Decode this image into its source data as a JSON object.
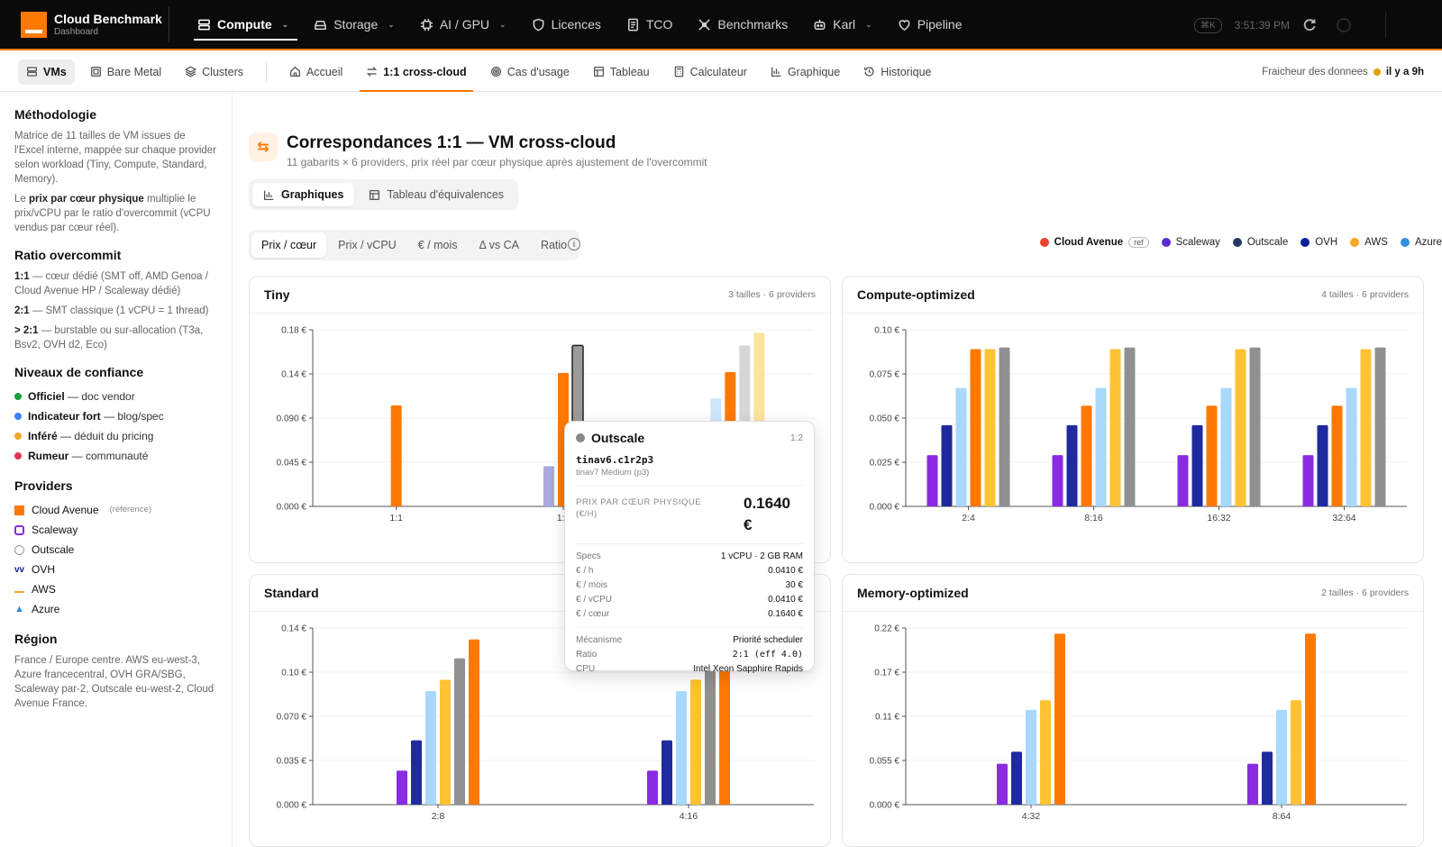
{
  "app": {
    "title": "Cloud Benchmark",
    "subtitle": "Dashboard"
  },
  "nav": [
    {
      "label": "Compute",
      "icon": "server-icon",
      "active": true,
      "dropdown": true
    },
    {
      "label": "Storage",
      "icon": "storage-icon",
      "dropdown": true
    },
    {
      "label": "AI / GPU",
      "icon": "chip-icon",
      "dropdown": true
    },
    {
      "label": "Licences",
      "icon": "shield-icon"
    },
    {
      "label": "TCO",
      "icon": "document-icon"
    },
    {
      "label": "Benchmarks",
      "icon": "tools-icon"
    },
    {
      "label": "Karl",
      "icon": "bot-icon",
      "dropdown": true
    },
    {
      "label": "Pipeline",
      "icon": "pipeline-icon"
    }
  ],
  "topright": {
    "shortcut": "⌘K",
    "clock": "3:51:39 PM"
  },
  "subnav": {
    "group1": [
      {
        "label": "VMs",
        "icon": "server-icon",
        "pill": true
      },
      {
        "label": "Bare Metal",
        "icon": "box-icon"
      },
      {
        "label": "Clusters",
        "icon": "layers-icon"
      }
    ],
    "group2": [
      {
        "label": "Accueil",
        "icon": "home-icon"
      },
      {
        "label": "1:1 cross-cloud",
        "icon": "swap-icon",
        "active": true
      },
      {
        "label": "Cas d'usage",
        "icon": "target-icon"
      },
      {
        "label": "Tableau",
        "icon": "table-icon"
      },
      {
        "label": "Calculateur",
        "icon": "calculator-icon"
      },
      {
        "label": "Graphique",
        "icon": "bar-chart-icon"
      },
      {
        "label": "Historique",
        "icon": "history-icon"
      }
    ],
    "freshness_label": "Fraicheur des donnees",
    "freshness_value": "il y a 9h"
  },
  "sidebar": {
    "methodology": {
      "title": "Méthodologie",
      "p1": "Matrice de 11 tailles de VM issues de l'Excel interne, mappée sur chaque provider selon workload (Tiny, Compute, Standard, Memory).",
      "p2_pre": "Le ",
      "p2_bold": "prix par cœur physique",
      "p2_post": " multiplie le prix/vCPU par le ratio d'overcommit (vCPU vendus par cœur réel)."
    },
    "overcommit": {
      "title": "Ratio overcommit",
      "items": [
        {
          "key": "1:1",
          "text": " — cœur dédié (SMT off, AMD Genoa / Cloud Avenue HP / Scaleway dédié)"
        },
        {
          "key": "2:1",
          "text": " — SMT classique (1 vCPU = 1 thread)"
        },
        {
          "key": "> 2:1",
          "text": " — burstable ou sur-allocation (T3a, Bsv2, OVH d2, Eco)"
        }
      ]
    },
    "confidence": {
      "title": "Niveaux de confiance",
      "items": [
        {
          "key": "Officiel",
          "text": " — doc vendor",
          "color": "#1a9e3f"
        },
        {
          "key": "Indicateur fort",
          "text": " — blog/spec",
          "color": "#3b82f6"
        },
        {
          "key": "Inféré",
          "text": " — déduit du pricing",
          "color": "#f5a623"
        },
        {
          "key": "Rumeur",
          "text": " — communauté",
          "color": "#e8335a"
        }
      ]
    },
    "providers": {
      "title": "Providers",
      "items": [
        {
          "name": "Cloud Avenue",
          "note": "(référence)",
          "icon": "orange-square-icon"
        },
        {
          "name": "Scaleway",
          "icon": "scaleway-icon"
        },
        {
          "name": "Outscale",
          "icon": "outscale-icon"
        },
        {
          "name": "OVH",
          "icon": "ovh-icon"
        },
        {
          "name": "AWS",
          "icon": "aws-icon"
        },
        {
          "name": "Azure",
          "icon": "azure-icon"
        }
      ]
    },
    "region": {
      "title": "Région",
      "text": "France / Europe centre. AWS eu-west-3, Azure francecentral, OVH GRA/SBG, Scaleway par-2, Outscale eu-west-2, Cloud Avenue France."
    }
  },
  "main": {
    "title": "Correspondances 1:1 — VM cross-cloud",
    "subtitle": "11 gabarits × 6 providers, prix réel par cœur physique après ajustement de l'overcommit",
    "view_tabs": [
      {
        "label": "Graphiques",
        "icon": "bar-chart-icon",
        "active": true
      },
      {
        "label": "Tableau d'équivalences",
        "icon": "table-icon"
      }
    ],
    "metric_tabs": [
      {
        "label": "Prix / cœur",
        "active": true
      },
      {
        "label": "Prix / vCPU"
      },
      {
        "label": "€ / mois"
      },
      {
        "label": "Δ vs CA"
      },
      {
        "label": "Ratio"
      }
    ],
    "legend": [
      {
        "name": "Cloud Avenue",
        "color": "#f0412b",
        "ref": "ref"
      },
      {
        "name": "Scaleway",
        "color": "#5b2bd1"
      },
      {
        "name": "Outscale",
        "color": "#1f3a63"
      },
      {
        "name": "OVH",
        "color": "#0b1f99"
      },
      {
        "name": "AWS",
        "color": "#f5a623"
      },
      {
        "name": "Azure",
        "color": "#2f8fe0"
      }
    ]
  },
  "chart_data": [
    {
      "type": "bar",
      "title": "Tiny",
      "meta": "3 tailles · 6 providers",
      "yticks": [
        "0.000 €",
        "0.045 €",
        "0.090 €",
        "0.14 €",
        "0.18 €"
      ],
      "ylim": [
        0,
        0.18
      ],
      "categories": [
        "1:1",
        "1:2",
        "1:4"
      ],
      "bars": [
        [
          {
            "value": 0.103,
            "color": "#ff7900"
          }
        ],
        [
          {
            "value": 0.041,
            "color": "#a9a9e0"
          },
          {
            "value": 0.136,
            "color": "#ff7900"
          },
          {
            "value": 0.164,
            "color": "#9b9b9b",
            "highlight": true
          }
        ],
        [
          {
            "value": 0.041,
            "color": "#dbeafb"
          },
          {
            "value": 0.11,
            "color": "#cfe6fb"
          },
          {
            "value": 0.137,
            "color": "#ff7900"
          },
          {
            "value": 0.164,
            "color": "#d6d6d6"
          },
          {
            "value": 0.177,
            "color": "#ffe39a"
          }
        ]
      ]
    },
    {
      "type": "bar",
      "title": "Compute-optimized",
      "meta": "4 tailles · 6 providers",
      "yticks": [
        "0.000 €",
        "0.025 €",
        "0.050 €",
        "0.075 €",
        "0.10 €"
      ],
      "ylim": [
        0,
        0.1
      ],
      "categories": [
        "2:4",
        "8:16",
        "16:32",
        "32:64"
      ],
      "bars": [
        [
          {
            "value": 0.029,
            "color": "#8a2be2"
          },
          {
            "value": 0.046,
            "color": "#1f2a9e"
          },
          {
            "value": 0.067,
            "color": "#a8d8fb"
          },
          {
            "value": 0.089,
            "color": "#ff7900"
          },
          {
            "value": 0.089,
            "color": "#ffc233"
          },
          {
            "value": 0.09,
            "color": "#909090"
          }
        ],
        [
          {
            "value": 0.029,
            "color": "#8a2be2"
          },
          {
            "value": 0.046,
            "color": "#1f2a9e"
          },
          {
            "value": 0.057,
            "color": "#ff7900"
          },
          {
            "value": 0.067,
            "color": "#a8d8fb"
          },
          {
            "value": 0.089,
            "color": "#ffc233"
          },
          {
            "value": 0.09,
            "color": "#909090"
          }
        ],
        [
          {
            "value": 0.029,
            "color": "#8a2be2"
          },
          {
            "value": 0.046,
            "color": "#1f2a9e"
          },
          {
            "value": 0.057,
            "color": "#ff7900"
          },
          {
            "value": 0.067,
            "color": "#a8d8fb"
          },
          {
            "value": 0.089,
            "color": "#ffc233"
          },
          {
            "value": 0.09,
            "color": "#909090"
          }
        ],
        [
          {
            "value": 0.029,
            "color": "#8a2be2"
          },
          {
            "value": 0.046,
            "color": "#1f2a9e"
          },
          {
            "value": 0.057,
            "color": "#ff7900"
          },
          {
            "value": 0.067,
            "color": "#a8d8fb"
          },
          {
            "value": 0.089,
            "color": "#ffc233"
          },
          {
            "value": 0.09,
            "color": "#909090"
          }
        ]
      ]
    },
    {
      "type": "bar",
      "title": "Standard",
      "meta": "",
      "yticks": [
        "0.000 €",
        "0.035 €",
        "0.070 €",
        "0.10 €",
        "0.14 €"
      ],
      "ylim": [
        0,
        0.14
      ],
      "categories": [
        "2:8",
        "4:16"
      ],
      "bars": [
        [
          {
            "value": 0.027,
            "color": "#8a2be2"
          },
          {
            "value": 0.051,
            "color": "#1f2a9e"
          },
          {
            "value": 0.09,
            "color": "#a8d8fb"
          },
          {
            "value": 0.099,
            "color": "#ffc233"
          },
          {
            "value": 0.116,
            "color": "#909090"
          },
          {
            "value": 0.131,
            "color": "#ff7900"
          }
        ],
        [
          {
            "value": 0.027,
            "color": "#8a2be2"
          },
          {
            "value": 0.051,
            "color": "#1f2a9e"
          },
          {
            "value": 0.09,
            "color": "#a8d8fb"
          },
          {
            "value": 0.099,
            "color": "#ffc233"
          },
          {
            "value": 0.116,
            "color": "#909090"
          },
          {
            "value": 0.131,
            "color": "#ff7900"
          }
        ]
      ]
    },
    {
      "type": "bar",
      "title": "Memory-optimized",
      "meta": "2 tailles · 6 providers",
      "yticks": [
        "0.000 €",
        "0.055 €",
        "0.11 €",
        "0.17 €",
        "0.22 €"
      ],
      "ylim": [
        0,
        0.22
      ],
      "categories": [
        "4:32",
        "8:64"
      ],
      "bars": [
        [
          {
            "value": 0.051,
            "color": "#8a2be2"
          },
          {
            "value": 0.066,
            "color": "#1f2a9e"
          },
          {
            "value": 0.118,
            "color": "#a8d8fb"
          },
          {
            "value": 0.13,
            "color": "#ffc233"
          },
          {
            "value": 0.213,
            "color": "#ff7900"
          }
        ],
        [
          {
            "value": 0.051,
            "color": "#8a2be2"
          },
          {
            "value": 0.066,
            "color": "#1f2a9e"
          },
          {
            "value": 0.118,
            "color": "#a8d8fb"
          },
          {
            "value": 0.13,
            "color": "#ffc233"
          },
          {
            "value": 0.213,
            "color": "#ff7900"
          }
        ]
      ]
    }
  ],
  "tooltip": {
    "provider": "Outscale",
    "ratio": "1:2",
    "instance": "tinav6.c1r2p3",
    "instance_sub": "tinav7 Medium (p3)",
    "price_label": "PRIX PAR CŒUR PHYSIQUE (€/H)",
    "price_value": "0.1640 €",
    "rows": [
      {
        "k": "Specs",
        "v": "1 vCPU · 2 GB RAM"
      },
      {
        "k": "€ / h",
        "v": "0.0410 €"
      },
      {
        "k": "€ / mois",
        "v": "30 €"
      },
      {
        "k": "€ / vCPU",
        "v": "0.0410 €"
      },
      {
        "k": "€ / cœur",
        "v": "0.1640 €"
      }
    ],
    "rows2": [
      {
        "k": "Mécanisme",
        "v": "Priorité scheduler"
      },
      {
        "k": "Ratio",
        "v": "2:1 (eff 4.0)",
        "mono": true
      },
      {
        "k": "CPU",
        "v": "Intel Xeon Sapphire Rapids"
      }
    ]
  }
}
